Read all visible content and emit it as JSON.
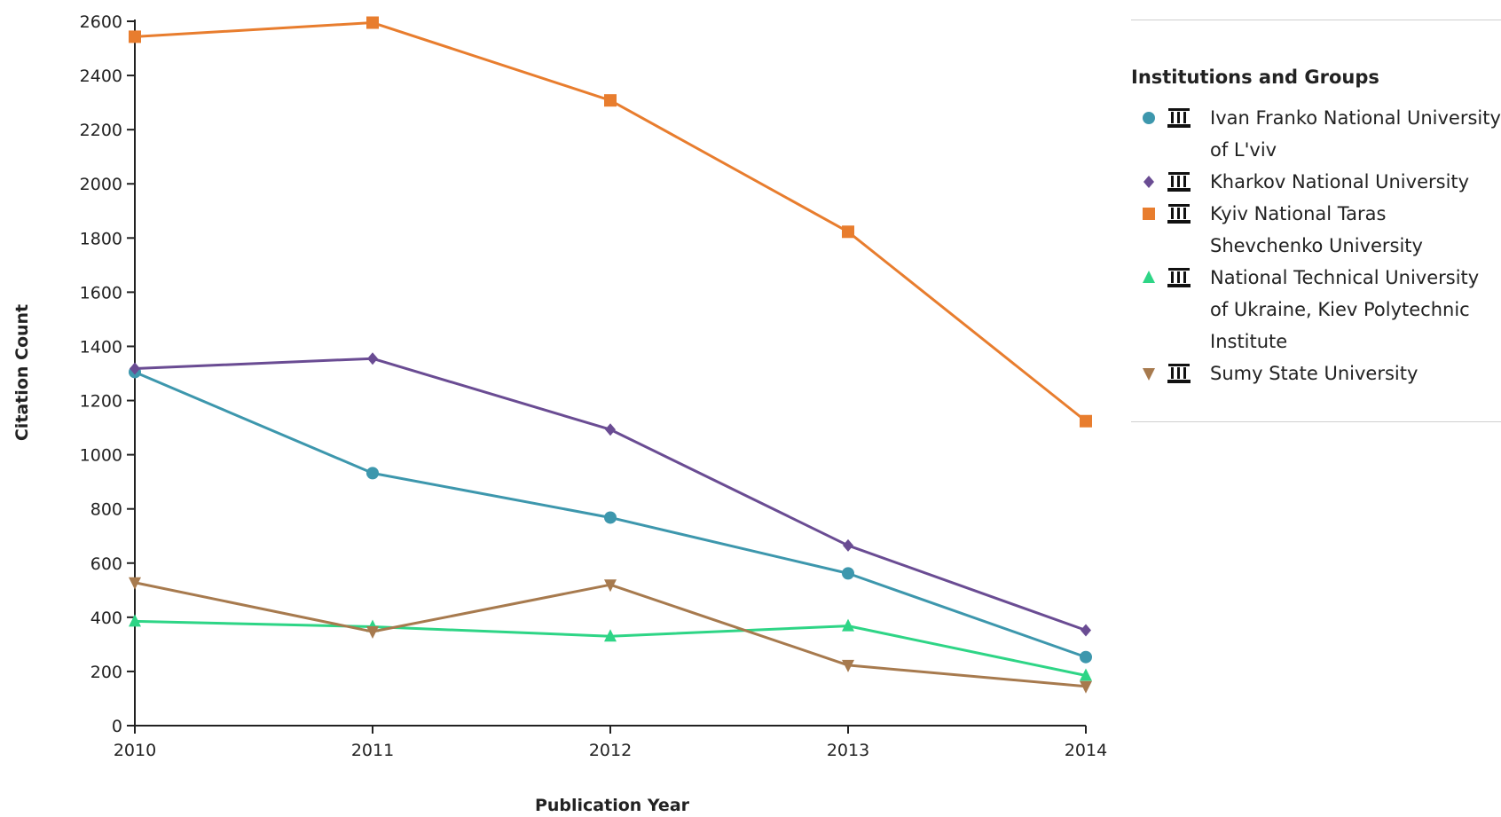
{
  "chart_data": {
    "type": "line",
    "xlabel": "Publication Year",
    "ylabel": "Citation Count",
    "x": [
      2010,
      2011,
      2012,
      2013,
      2014
    ],
    "ylim": [
      0,
      2600
    ],
    "yticks": [
      0,
      200,
      400,
      600,
      800,
      1000,
      1200,
      1400,
      1600,
      1800,
      2000,
      2200,
      2400,
      2600
    ],
    "grid": false,
    "legend_position": "right",
    "series": [
      {
        "name": "Ivan Franko National University of L'viv",
        "color": "#3d97ad",
        "marker": "circle",
        "values": [
          1305,
          932,
          768,
          562,
          253
        ]
      },
      {
        "name": "Kharkov National University",
        "color": "#6a4c93",
        "marker": "diamond",
        "values": [
          1318,
          1355,
          1093,
          665,
          352
        ]
      },
      {
        "name": "Kyiv National Taras Shevchenko University",
        "color": "#e87d2e",
        "marker": "square",
        "values": [
          2543,
          2595,
          2308,
          1823,
          1124
        ]
      },
      {
        "name": "National Technical University of Ukraine, Kiev Polytechnic Institute",
        "color": "#2ed586",
        "marker": "triangle-up",
        "values": [
          385,
          365,
          330,
          368,
          185
        ]
      },
      {
        "name": "Sumy State University",
        "color": "#a77a4e",
        "marker": "triangle-down",
        "values": [
          528,
          347,
          520,
          223,
          145
        ]
      }
    ]
  },
  "legend": {
    "title": "Institutions and Groups",
    "item_icon": "institution-icon"
  }
}
